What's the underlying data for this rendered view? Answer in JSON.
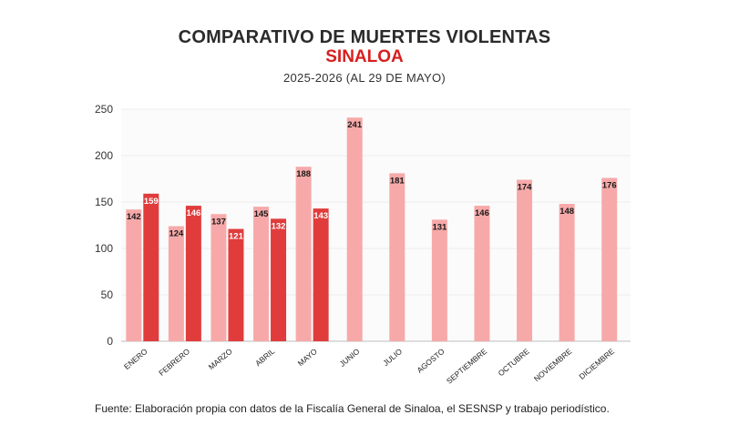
{
  "header": {
    "title": "COMPARATIVO DE MUERTES VIOLENTAS",
    "region": "SINALOA",
    "period": "2025-2026 (AL 29 DE MAYO)"
  },
  "footer": {
    "source": "Fuente: Elaboración propia con datos de la Fiscalía General de Sinaloa, el SESNSP y trabajo periodístico."
  },
  "colors": {
    "series_2025": "#f7a9a9",
    "series_2026": "#e03c3c",
    "accent": "#d81e1e"
  },
  "chart_data": {
    "type": "bar",
    "title": "COMPARATIVO DE MUERTES VIOLENTAS",
    "xlabel": "",
    "ylabel": "",
    "ylim": [
      0,
      250
    ],
    "yticks": [
      0,
      50,
      100,
      150,
      200,
      250
    ],
    "grid": true,
    "legend": "none",
    "categories": [
      "ENERO",
      "FEBRERO",
      "MARZO",
      "ABRIL",
      "MAYO",
      "JUNIO",
      "JULIO",
      "AGOSTO",
      "SEPTIEMBRE",
      "OCTUBRE",
      "NOVIEMBRE",
      "DICIEMBRE"
    ],
    "series": [
      {
        "values": [
          142,
          124,
          137,
          145,
          188,
          241,
          181,
          131,
          146,
          174,
          148,
          176
        ]
      },
      {
        "values": [
          159,
          146,
          121,
          132,
          143,
          null,
          null,
          null,
          null,
          null,
          null,
          null
        ]
      }
    ]
  }
}
